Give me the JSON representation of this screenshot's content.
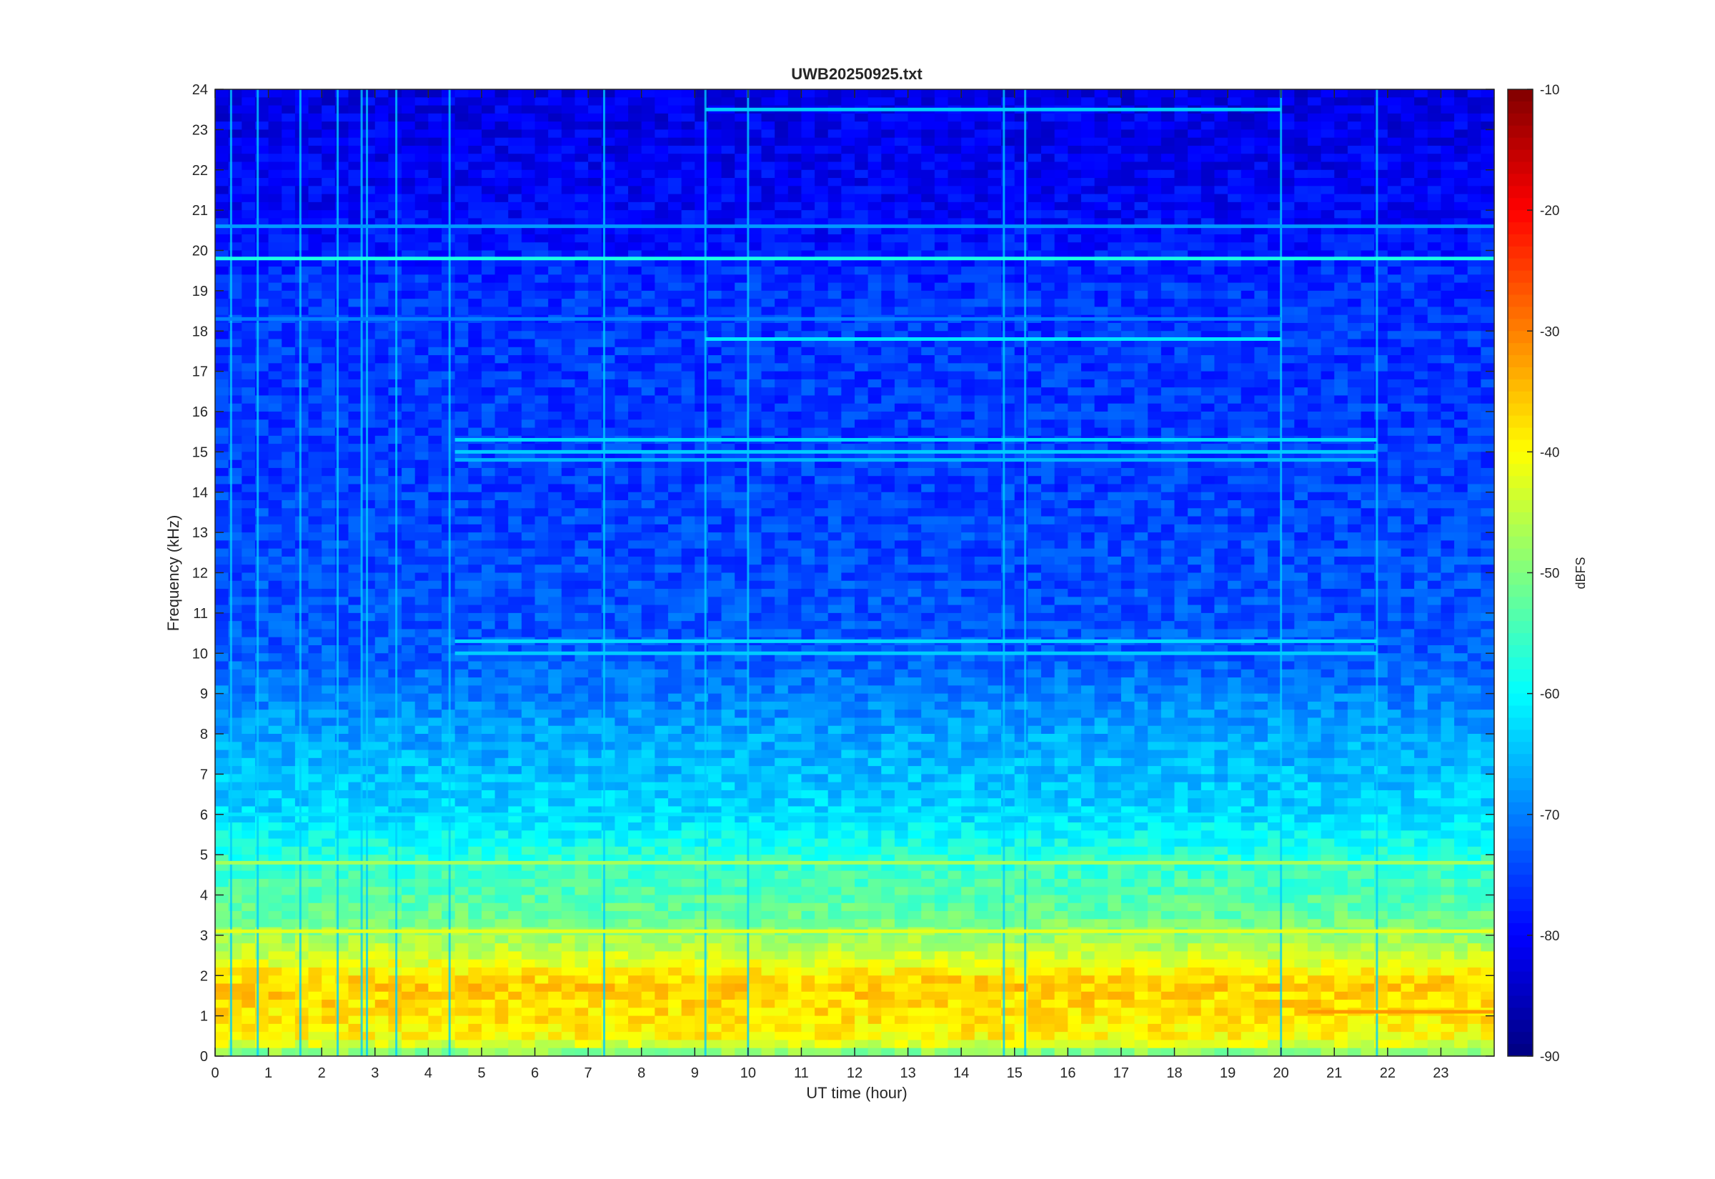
{
  "chart_data": {
    "type": "heatmap",
    "title": "UWB20250925.txt",
    "xlabel": "UT time (hour)",
    "ylabel": "Frequency (kHz)",
    "xlim": [
      0,
      24
    ],
    "ylim": [
      0,
      24
    ],
    "x_ticks": [
      0,
      1,
      2,
      3,
      4,
      5,
      6,
      7,
      8,
      9,
      10,
      11,
      12,
      13,
      14,
      15,
      16,
      17,
      18,
      19,
      20,
      21,
      22,
      23
    ],
    "y_ticks": [
      0,
      1,
      2,
      3,
      4,
      5,
      6,
      7,
      8,
      9,
      10,
      11,
      12,
      13,
      14,
      15,
      16,
      17,
      18,
      19,
      20,
      21,
      22,
      23,
      24
    ],
    "colorbar": {
      "label": "dBFS",
      "clim": [
        -90,
        -10
      ],
      "ticks": [
        -10,
        -20,
        -30,
        -40,
        -50,
        -60,
        -70,
        -80,
        -90
      ],
      "colormap": "jet"
    },
    "grid": false,
    "background_level_by_frequency_khz": [
      {
        "f": 0.0,
        "dbfs": -52
      },
      {
        "f": 0.4,
        "dbfs": -40
      },
      {
        "f": 1.0,
        "dbfs": -38
      },
      {
        "f": 1.8,
        "dbfs": -36
      },
      {
        "f": 2.5,
        "dbfs": -44
      },
      {
        "f": 3.5,
        "dbfs": -52
      },
      {
        "f": 4.8,
        "dbfs": -56
      },
      {
        "f": 6.0,
        "dbfs": -63
      },
      {
        "f": 8.0,
        "dbfs": -67
      },
      {
        "f": 10.0,
        "dbfs": -73
      },
      {
        "f": 14.0,
        "dbfs": -75
      },
      {
        "f": 19.0,
        "dbfs": -76
      },
      {
        "f": 21.0,
        "dbfs": -80
      },
      {
        "f": 24.0,
        "dbfs": -82
      }
    ],
    "tonal_lines": [
      {
        "freq_khz": 19.8,
        "t_start": 0,
        "t_end": 24,
        "dbfs": -58
      },
      {
        "freq_khz": 20.6,
        "t_start": 0,
        "t_end": 24,
        "dbfs": -68
      },
      {
        "freq_khz": 23.5,
        "t_start": 9.2,
        "t_end": 20.0,
        "dbfs": -64
      },
      {
        "freq_khz": 17.8,
        "t_start": 9.2,
        "t_end": 20.0,
        "dbfs": -62
      },
      {
        "freq_khz": 18.3,
        "t_start": 0,
        "t_end": 20.0,
        "dbfs": -70
      },
      {
        "freq_khz": 15.3,
        "t_start": 4.5,
        "t_end": 21.8,
        "dbfs": -63
      },
      {
        "freq_khz": 15.0,
        "t_start": 4.5,
        "t_end": 21.8,
        "dbfs": -64
      },
      {
        "freq_khz": 14.8,
        "t_start": 4.5,
        "t_end": 21.8,
        "dbfs": -66
      },
      {
        "freq_khz": 10.3,
        "t_start": 4.5,
        "t_end": 21.8,
        "dbfs": -63
      },
      {
        "freq_khz": 10.0,
        "t_start": 4.5,
        "t_end": 21.8,
        "dbfs": -64
      },
      {
        "freq_khz": 6.0,
        "t_start": 0,
        "t_end": 20.0,
        "dbfs": -62
      },
      {
        "freq_khz": 4.8,
        "t_start": 0,
        "t_end": 24,
        "dbfs": -47
      },
      {
        "freq_khz": 3.1,
        "t_start": 0,
        "t_end": 24,
        "dbfs": -42
      },
      {
        "freq_khz": 1.1,
        "t_start": 20.5,
        "t_end": 24,
        "dbfs": -32
      }
    ],
    "broadband_events_hours": [
      0.3,
      0.8,
      1.6,
      2.3,
      2.75,
      2.85,
      3.4,
      4.4,
      7.3,
      9.2,
      10.0,
      14.8,
      15.2,
      20.0,
      21.8
    ]
  }
}
